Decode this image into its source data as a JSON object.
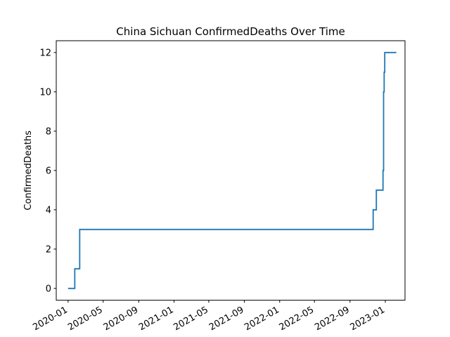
{
  "chart_data": {
    "type": "line",
    "title": "China Sichuan ConfirmedDeaths Over Time",
    "xlabel": "",
    "ylabel": "ConfirmedDeaths",
    "x_axis_type": "date",
    "xlim": [
      "2019-11-21",
      "2023-03-10"
    ],
    "ylim": [
      -0.6,
      12.6
    ],
    "x_tick_labels": [
      "2020-01",
      "2020-05",
      "2020-09",
      "2021-01",
      "2021-05",
      "2021-09",
      "2022-01",
      "2022-05",
      "2022-09",
      "2023-01"
    ],
    "x_tick_dates": [
      "2020-01-01",
      "2020-05-01",
      "2020-09-01",
      "2021-01-01",
      "2021-05-01",
      "2021-09-01",
      "2022-01-01",
      "2022-05-01",
      "2022-09-01",
      "2023-01-01"
    ],
    "y_ticks": [
      0,
      2,
      4,
      6,
      8,
      10,
      12
    ],
    "y_tick_labels": [
      "0",
      "2",
      "4",
      "6",
      "8",
      "10",
      "12"
    ],
    "grid": false,
    "line_style": "steps",
    "series": [
      {
        "color": "#1f77b4",
        "points": [
          {
            "x": "2020-01-01",
            "y": 0
          },
          {
            "x": "2020-01-24",
            "y": 1
          },
          {
            "x": "2020-02-10",
            "y": 3
          },
          {
            "x": "2022-11-20",
            "y": 4
          },
          {
            "x": "2022-12-01",
            "y": 5
          },
          {
            "x": "2022-12-24",
            "y": 6
          },
          {
            "x": "2022-12-26",
            "y": 10
          },
          {
            "x": "2022-12-28",
            "y": 11
          },
          {
            "x": "2022-12-30",
            "y": 12
          },
          {
            "x": "2023-02-08",
            "y": 12
          }
        ]
      }
    ]
  }
}
